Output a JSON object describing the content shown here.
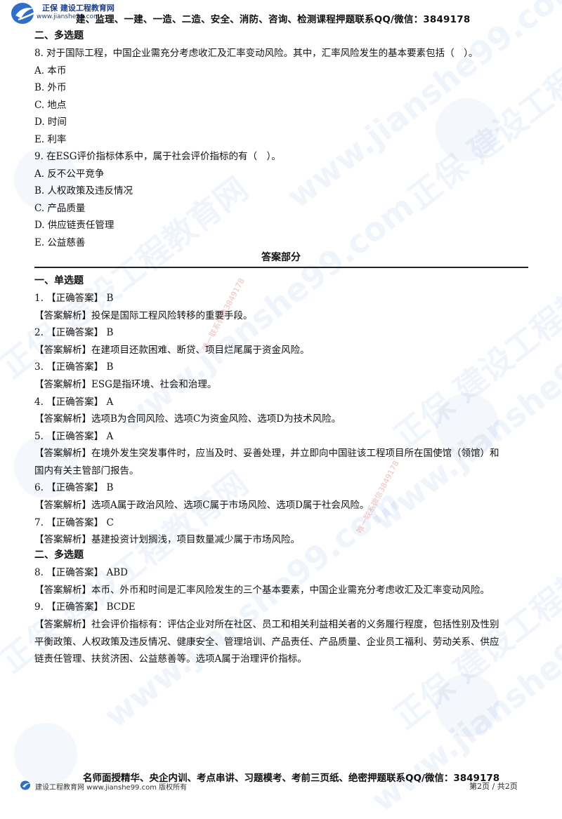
{
  "header": {
    "brand_name": "正保 建设工程教育网",
    "brand_url": "www.jianshe99.com",
    "tagline": "建、监理、一建、一造、二造、安全、消防、咨询、检测课程押题联系QQ/微信：3849178"
  },
  "questions_section": {
    "title": "二、多选题",
    "q8": {
      "stem": "8. 对于国际工程，中国企业需充分考虑收汇及汇率变动风险。其中，汇率风险发生的基本要素包括（　）。",
      "options": [
        "A. 本币",
        "B. 外币",
        "C. 地点",
        "D. 时间",
        "E. 利率"
      ]
    },
    "q9": {
      "stem": "9. 在ESG评价指标体系中，属于社会评价指标的有（　）。",
      "options": [
        "A. 反不公平竞争",
        "B. 人权政策及违反情况",
        "C. 产品质量",
        "D. 供应链责任管理",
        "E. 公益慈善"
      ]
    }
  },
  "answers": {
    "title": "答案部分",
    "single_title": "一、单选题",
    "multi_title": "二、多选题",
    "items": [
      {
        "answer": "1. 【正确答案】 B",
        "analysis": [
          "【答案解析】投保是国际工程风险转移的重要手段。"
        ]
      },
      {
        "answer": "2. 【正确答案】 B",
        "analysis": [
          "【答案解析】在建项目还款困难、断贷、项目烂尾属于资金风险。"
        ]
      },
      {
        "answer": "3. 【正确答案】 B",
        "analysis": [
          "【答案解析】ESG是指环境、社会和治理。"
        ]
      },
      {
        "answer": "4. 【正确答案】 A",
        "analysis": [
          "【答案解析】选项B为合同风险、选项C为资金风险、选项D为技术风险。"
        ]
      },
      {
        "answer": "5. 【正确答案】 A",
        "analysis": [
          "【答案解析】在境外发生突发事件时，应当及时、妥善处理，并立即向中国驻该工程项目所在国使馆（领馆）和",
          "国内有关主管部门报告。"
        ]
      },
      {
        "answer": "6. 【正确答案】 B",
        "analysis": [
          "【答案解析】选项A属于政治风险、选项C属于市场风险、选项D属于社会风险。"
        ]
      },
      {
        "answer": "7. 【正确答案】 C",
        "analysis": [
          "【答案解析】基建投资计划搁浅，项目数量减少属于市场风险。"
        ]
      },
      {
        "answer": "8. 【正确答案】 ABD",
        "analysis": [
          "【答案解析】本币、外币和时间是汇率风险发生的三个基本要素，中国企业需充分考虑收汇及汇率变动风险。"
        ]
      },
      {
        "answer": "9. 【正确答案】 BCDE",
        "analysis": [
          "【答案解析】社会评价指标有：评估企业对所在社区、员工和相关利益相关者的义务履行程度，包括性别及性别",
          "平衡政策、人权政策及违反情况、健康安全、管理培训、产品责任、产品质量、企业员工福利、劳动关系、供应",
          "链责任管理、扶贫济困、公益慈善等。选项A属于治理评价指标。"
        ]
      }
    ]
  },
  "footer": {
    "promo": "名师面授精华、央企内训、考点串讲、习题模考、考前三页纸、绝密押题联系QQ/微信：3849178",
    "brand": "建设工程教育网 www.jianshe99.com 版权所有",
    "page": "第2页 / 共2页"
  },
  "watermark": {
    "brand_text": "正保 建设工程教育网",
    "url_text": "www.jianshe99.com",
    "stamp_text": "唯一联系微信3849178"
  },
  "colors": {
    "brand_blue": "#1a3f8f",
    "watermark_blue": "#4678c8",
    "stamp_red": "#c82828"
  }
}
